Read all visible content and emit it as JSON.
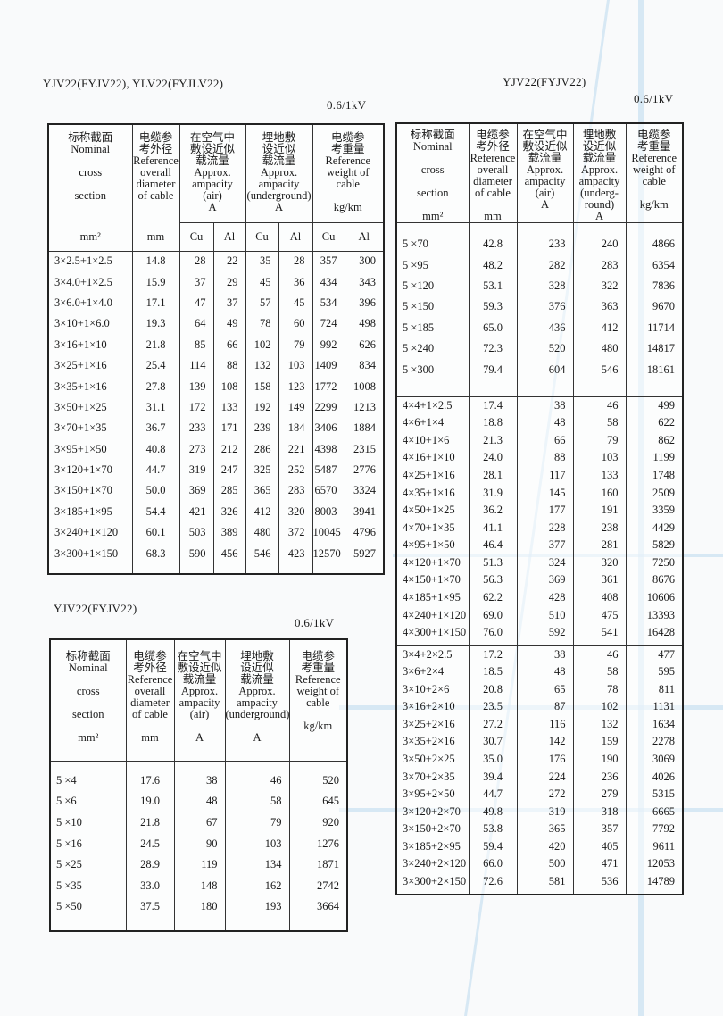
{
  "table1": {
    "title": "YJV22(FYJV22), YLV22(FYJLV22)",
    "voltage": "0.6/1kV",
    "headers": {
      "section": "标称截面\nNominal\n\ncross\n\nsection",
      "section_unit": "mm²",
      "diameter": "电缆参\n考外径\nReference\noverall\ndiameter\nof cable",
      "diameter_unit": "mm",
      "air": "在空气中\n敷设近似\n载流量\nApprox.\nampacity\n(air)\nA",
      "underground": "埋地敷\n设近似\n载流量\nApprox.\nampacity\n(underground)\nA",
      "weight": "电缆参\n考重量\nReference\nweight of\ncable\n\nkg/km",
      "cu": "Cu",
      "al": "Al"
    },
    "rows": [
      [
        "3×2.5+1×2.5",
        "14.8",
        "28",
        "22",
        "35",
        "28",
        "357",
        "300"
      ],
      [
        "3×4.0+1×2.5",
        "15.9",
        "37",
        "29",
        "45",
        "36",
        "434",
        "343"
      ],
      [
        "3×6.0+1×4.0",
        "17.1",
        "47",
        "37",
        "57",
        "45",
        "534",
        "396"
      ],
      [
        "3×10+1×6.0",
        "19.3",
        "64",
        "49",
        "78",
        "60",
        "724",
        "498"
      ],
      [
        "3×16+1×10",
        "21.8",
        "85",
        "66",
        "102",
        "79",
        "992",
        "626"
      ],
      [
        "3×25+1×16",
        "25.4",
        "114",
        "88",
        "132",
        "103",
        "1409",
        "834"
      ],
      [
        "3×35+1×16",
        "27.8",
        "139",
        "108",
        "158",
        "123",
        "1772",
        "1008"
      ],
      [
        "3×50+1×25",
        "31.1",
        "172",
        "133",
        "192",
        "149",
        "2299",
        "1213"
      ],
      [
        "3×70+1×35",
        "36.7",
        "233",
        "171",
        "239",
        "184",
        "3406",
        "1884"
      ],
      [
        "3×95+1×50",
        "40.8",
        "273",
        "212",
        "286",
        "221",
        "4398",
        "2315"
      ],
      [
        "3×120+1×70",
        "44.7",
        "319",
        "247",
        "325",
        "252",
        "5487",
        "2776"
      ],
      [
        "3×150+1×70",
        "50.0",
        "369",
        "285",
        "365",
        "283",
        "6570",
        "3324"
      ],
      [
        "3×185+1×95",
        "54.4",
        "421",
        "326",
        "412",
        "320",
        "8003",
        "3941"
      ],
      [
        "3×240+1×120",
        "60.1",
        "503",
        "389",
        "480",
        "372",
        "10045",
        "4796"
      ],
      [
        "3×300+1×150",
        "68.3",
        "590",
        "456",
        "546",
        "423",
        "12570",
        "5927"
      ]
    ]
  },
  "table2": {
    "title": "YJV22(FYJV22)",
    "voltage": "0.6/1kV",
    "headers": {
      "section": "标称截面\nNominal\n\ncross\n\nsection\n\nmm²",
      "diameter": "电缆参\n考外径\nReference\noverall\ndiameter\nof cable\n\nmm",
      "air": "在空气中\n敷设近似\n载流量\nApprox.\nampacity\n(air)\nA",
      "underground": "埋地敷\n设近似\n载流量\nApprox.\nampacity\n(underg-\nround)\nA",
      "weight": "电缆参\n考重量\nReference\nweight of\ncable\n\nkg/km"
    },
    "groups": [
      [
        [
          "5 ×70",
          "42.8",
          "233",
          "240",
          "4866"
        ],
        [
          "5 ×95",
          "48.2",
          "282",
          "283",
          "6354"
        ],
        [
          "5 ×120",
          "53.1",
          "328",
          "322",
          "7836"
        ],
        [
          "5 ×150",
          "59.3",
          "376",
          "363",
          "9670"
        ],
        [
          "5 ×185",
          "65.0",
          "436",
          "412",
          "11714"
        ],
        [
          "5 ×240",
          "72.3",
          "520",
          "480",
          "14817"
        ],
        [
          "5 ×300",
          "79.4",
          "604",
          "546",
          "18161"
        ]
      ],
      [
        [
          "4×4+1×2.5",
          "17.4",
          "38",
          "46",
          "499"
        ],
        [
          "4×6+1×4",
          "18.8",
          "48",
          "58",
          "622"
        ],
        [
          "4×10+1×6",
          "21.3",
          "66",
          "79",
          "862"
        ],
        [
          "4×16+1×10",
          "24.0",
          "88",
          "103",
          "1199"
        ],
        [
          "4×25+1×16",
          "28.1",
          "117",
          "133",
          "1748"
        ],
        [
          "4×35+1×16",
          "31.9",
          "145",
          "160",
          "2509"
        ],
        [
          "4×50+1×25",
          "36.2",
          "177",
          "191",
          "3359"
        ],
        [
          "4×70+1×35",
          "41.1",
          "228",
          "238",
          "4429"
        ],
        [
          "4×95+1×50",
          "46.4",
          "377",
          "281",
          "5829"
        ],
        [
          "4×120+1×70",
          "51.3",
          "324",
          "320",
          "7250"
        ],
        [
          "4×150+1×70",
          "56.3",
          "369",
          "361",
          "8676"
        ],
        [
          "4×185+1×95",
          "62.2",
          "428",
          "408",
          "10606"
        ],
        [
          "4×240+1×120",
          "69.0",
          "510",
          "475",
          "13393"
        ],
        [
          "4×300+1×150",
          "76.0",
          "592",
          "541",
          "16428"
        ]
      ],
      [
        [
          "3×4+2×2.5",
          "17.2",
          "38",
          "46",
          "477"
        ],
        [
          "3×6+2×4",
          "18.5",
          "48",
          "58",
          "595"
        ],
        [
          "3×10+2×6",
          "20.8",
          "65",
          "78",
          "811"
        ],
        [
          "3×16+2×10",
          "23.5",
          "87",
          "102",
          "1131"
        ],
        [
          "3×25+2×16",
          "27.2",
          "116",
          "132",
          "1634"
        ],
        [
          "3×35+2×16",
          "30.7",
          "142",
          "159",
          "2278"
        ],
        [
          "3×50+2×25",
          "35.0",
          "176",
          "190",
          "3069"
        ],
        [
          "3×70+2×35",
          "39.4",
          "224",
          "236",
          "4026"
        ],
        [
          "3×95+2×50",
          "44.7",
          "272",
          "279",
          "5315"
        ],
        [
          "3×120+2×70",
          "49.8",
          "319",
          "318",
          "6665"
        ],
        [
          "3×150+2×70",
          "53.8",
          "365",
          "357",
          "7792"
        ],
        [
          "3×185+2×95",
          "59.4",
          "420",
          "405",
          "9611"
        ],
        [
          "3×240+2×120",
          "66.0",
          "500",
          "471",
          "12053"
        ],
        [
          "3×300+2×150",
          "72.6",
          "581",
          "536",
          "14789"
        ]
      ]
    ]
  },
  "table3": {
    "title": "YJV22(FYJV22)",
    "voltage": "0.6/1kV",
    "headers": {
      "section": "标称截面\nNominal\n\ncross\n\nsection\n\nmm²",
      "diameter": "电缆参\n考外径\nReference\noverall\ndiameter\nof cable\n\nmm",
      "air": "在空气中\n敷设近似\n载流量\nApprox.\nampacity\n(air)\n\nA",
      "underground": "埋地敷\n设近似\n载流量\nApprox.\nampacity\n(underground)\n\nA",
      "weight": "电缆参\n考重量\nReference\nweight of\ncable\n\nkg/km"
    },
    "rows": [
      [
        "5 ×4",
        "17.6",
        "38",
        "46",
        "520"
      ],
      [
        "5 ×6",
        "19.0",
        "48",
        "58",
        "645"
      ],
      [
        "5 ×10",
        "21.8",
        "67",
        "79",
        "920"
      ],
      [
        "5 ×16",
        "24.5",
        "90",
        "103",
        "1276"
      ],
      [
        "5 ×25",
        "28.9",
        "119",
        "134",
        "1871"
      ],
      [
        "5 ×35",
        "33.0",
        "148",
        "162",
        "2742"
      ],
      [
        "5 ×50",
        "37.5",
        "180",
        "193",
        "3664"
      ]
    ]
  },
  "colors": {
    "background_lines": "#bcd9ee",
    "ink": "#1a1a1a"
  }
}
